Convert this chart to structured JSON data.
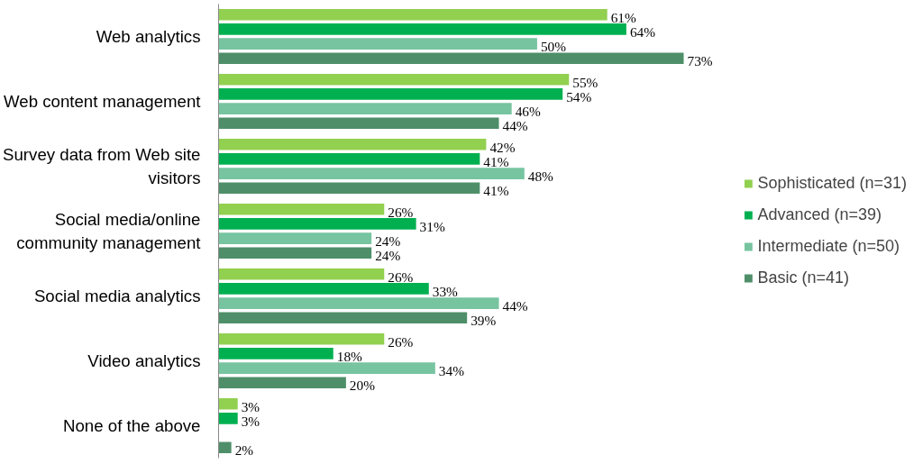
{
  "chart_data": {
    "type": "bar",
    "orientation": "horizontal",
    "legend": "right",
    "grid": false,
    "categories": [
      "Web analytics",
      "Web content management",
      "Survey data from Web site visitors",
      "Social media/online community management",
      "Social media analytics",
      "Video analytics",
      "None of the above"
    ],
    "series": [
      {
        "name": "Sophisticated (n=31)",
        "color": "#92d050",
        "values": [
          61,
          55,
          42,
          26,
          26,
          26,
          3
        ],
        "value_labels": [
          "61%",
          "55%",
          "42%",
          "26%",
          "26%",
          "26%",
          "3%"
        ]
      },
      {
        "name": "Advanced (n=39)",
        "color": "#00b050",
        "values": [
          64,
          54,
          41,
          31,
          33,
          18,
          3
        ],
        "value_labels": [
          "64%",
          "54%",
          "41%",
          "31%",
          "33%",
          "18%",
          "3%"
        ]
      },
      {
        "name": "Intermediate (n=50)",
        "color": "#77c4a0",
        "values": [
          50,
          46,
          48,
          24,
          44,
          34,
          null
        ],
        "value_labels": [
          "50%",
          "46%",
          "48%",
          "24%",
          "44%",
          "34%",
          null
        ]
      },
      {
        "name": "Basic (n=41)",
        "color": "#4e8f6a",
        "values": [
          73,
          44,
          41,
          24,
          39,
          20,
          2
        ],
        "value_labels": [
          "73%",
          "44%",
          "41%",
          "24%",
          "39%",
          "20%",
          "2%"
        ]
      }
    ]
  }
}
